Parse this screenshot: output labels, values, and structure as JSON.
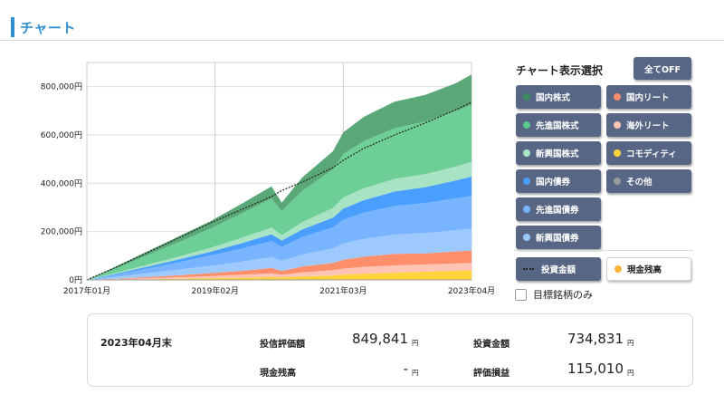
{
  "header": {
    "title": "チャート"
  },
  "chart_data": {
    "type": "area",
    "stacked": true,
    "x": [
      "2017/01",
      "2017/07",
      "2018/01",
      "2018/07",
      "2019/01",
      "2019/07",
      "2020/01",
      "2020/03",
      "2020/07",
      "2021/01",
      "2021/03",
      "2021/07",
      "2022/01",
      "2022/07",
      "2023/01",
      "2023/04"
    ],
    "x_tick_labels": [
      "2017年01月",
      "2019年02月",
      "2021年03月",
      "2023年04月"
    ],
    "y_tick_labels": [
      "0円",
      "200,000円",
      "400,000円",
      "600,000円",
      "800,000円"
    ],
    "ylim": [
      0,
      900000
    ],
    "grid": true,
    "series": [
      {
        "color": "#ffd43b",
        "values": [
          0,
          1000,
          3000,
          5000,
          7000,
          9000,
          12000,
          10000,
          14000,
          18000,
          22000,
          26000,
          30000,
          34000,
          38000,
          40000
        ]
      },
      {
        "color": "#ffc4b3",
        "values": [
          0,
          2000,
          4000,
          6000,
          9000,
          12000,
          15000,
          11000,
          17000,
          22000,
          25000,
          28000,
          30000,
          30000,
          30000,
          30000
        ]
      },
      {
        "color": "#ff8f6b",
        "values": [
          0,
          2000,
          5000,
          8000,
          12000,
          16000,
          22000,
          16000,
          24000,
          30000,
          36000,
          42000,
          48000,
          46000,
          50000,
          52000
        ]
      },
      {
        "color": "#9ec9ff",
        "values": [
          0,
          8000,
          16000,
          24000,
          30000,
          38000,
          46000,
          42000,
          50000,
          60000,
          68000,
          74000,
          80000,
          84000,
          88000,
          90000
        ]
      },
      {
        "color": "#78b4ff",
        "values": [
          0,
          10000,
          20000,
          30000,
          42000,
          54000,
          66000,
          58000,
          72000,
          88000,
          98000,
          108000,
          118000,
          124000,
          132000,
          136000
        ]
      },
      {
        "color": "#4a9eff",
        "values": [
          0,
          4000,
          8000,
          12000,
          16000,
          22000,
          28000,
          26000,
          32000,
          40000,
          46000,
          52000,
          60000,
          66000,
          74000,
          80000
        ]
      },
      {
        "color": "#a8e3c4",
        "values": [
          0,
          4000,
          8000,
          12000,
          16000,
          22000,
          28000,
          22000,
          30000,
          40000,
          46000,
          50000,
          52000,
          54000,
          58000,
          60000
        ]
      },
      {
        "color": "#6dcf95",
        "values": [
          0,
          20000,
          40000,
          60000,
          80000,
          100000,
          120000,
          100000,
          130000,
          160000,
          180000,
          195000,
          210000,
          218000,
          230000,
          237000
        ]
      },
      {
        "color": "#5aa777",
        "values": [
          0,
          8000,
          16000,
          24000,
          30000,
          40000,
          50000,
          35000,
          55000,
          75000,
          90000,
          100000,
          110000,
          110000,
          115000,
          125000
        ]
      }
    ],
    "invest_line": {
      "color": "#222222",
      "values": [
        0,
        55000,
        115000,
        175000,
        235000,
        290000,
        345000,
        370000,
        405000,
        465000,
        495000,
        545000,
        600000,
        650000,
        705000,
        735000
      ]
    }
  },
  "panel": {
    "title": "チャート表示選択",
    "all_off": "全てOFF",
    "buttons": [
      {
        "label": "国内株式",
        "color": "#3d8a5c"
      },
      {
        "label": "国内リート",
        "color": "#ff8f6b"
      },
      {
        "label": "先進国株式",
        "color": "#5dc98a"
      },
      {
        "label": "海外リート",
        "color": "#ffc4b3"
      },
      {
        "label": "新興国株式",
        "color": "#a8e3c4"
      },
      {
        "label": "コモディティ",
        "color": "#ffd43b"
      },
      {
        "label": "国内債券",
        "color": "#4a9eff"
      },
      {
        "label": "その他",
        "color": "#9a9a9a"
      },
      {
        "label": "先進国債券",
        "color": "#78b4ff"
      },
      {
        "label": "新興国債券",
        "color": "#9ec9ff"
      }
    ],
    "invest_total": "投資金額",
    "cash_balance": "現金残高",
    "cash_color": "#ffb43b",
    "target_only": "目標銘柄のみ"
  },
  "summary": {
    "date": "2023年04月末",
    "eval_label": "投信評価額",
    "eval_value": "849,841",
    "cash_label": "現金残高",
    "cash_value": "-",
    "invest_label": "投資金額",
    "invest_value": "734,831",
    "pl_label": "評価損益",
    "pl_value": "115,010",
    "unit": "円"
  }
}
